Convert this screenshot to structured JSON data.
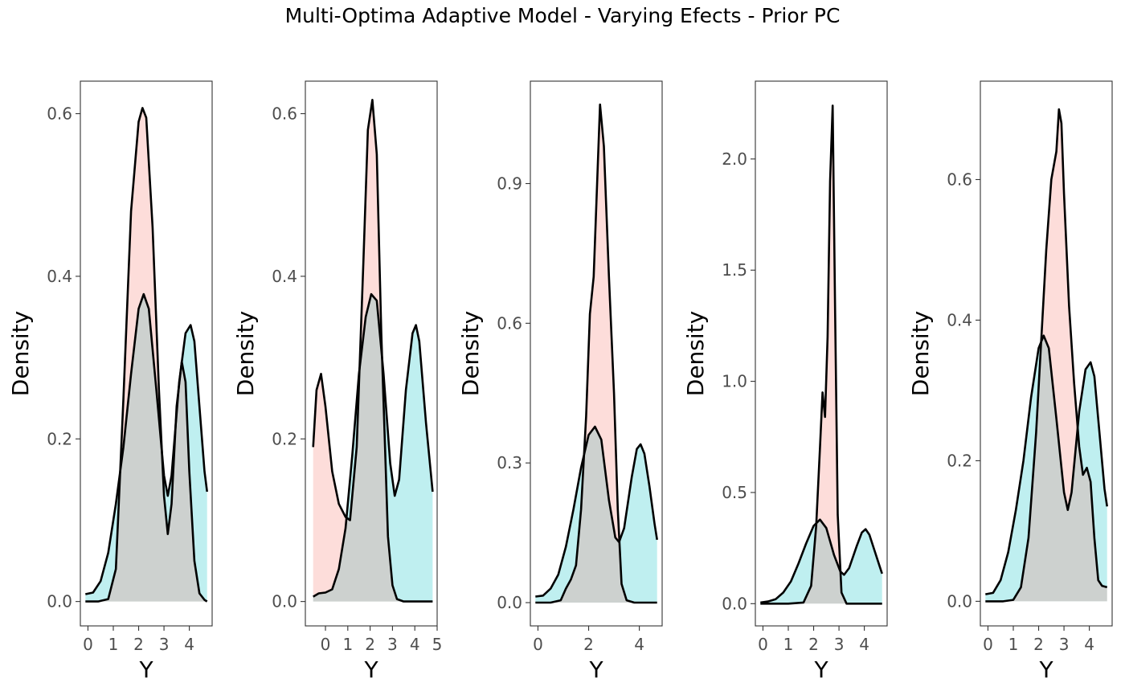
{
  "figure": {
    "title": "Multi-Optima Adaptive Model - Varying Efects - Prior PC"
  },
  "colors": {
    "prior_fill": "#F8766D",
    "observed_fill": "#00BFC4",
    "fill_opacity": 0.25,
    "line": "#000000"
  },
  "chart_data": [
    {
      "type": "area",
      "xlabel": "Y",
      "ylabel": "Density",
      "xlim": [
        -0.3,
        4.9
      ],
      "ylim": [
        -0.03,
        0.64
      ],
      "xticks": [
        "0",
        "1",
        "2",
        "3",
        "4"
      ],
      "xtick_values": [
        0,
        1,
        2,
        3,
        4
      ],
      "yticks": [
        "0.0",
        "0.2",
        "0.4",
        "0.6"
      ],
      "ytick_values": [
        0,
        0.2,
        0.4,
        0.6
      ],
      "series": [
        {
          "fill": "prior",
          "x": [
            -0.1,
            0.4,
            0.8,
            1.1,
            1.4,
            1.7,
            2.0,
            2.15,
            2.3,
            2.55,
            2.8,
            3.0,
            3.15,
            3.3,
            3.5,
            3.7,
            3.85,
            4.0,
            4.2,
            4.4,
            4.6,
            4.7
          ],
          "y": [
            0.0,
            0.0,
            0.003,
            0.04,
            0.25,
            0.48,
            0.59,
            0.607,
            0.595,
            0.46,
            0.26,
            0.13,
            0.083,
            0.12,
            0.24,
            0.295,
            0.27,
            0.16,
            0.05,
            0.01,
            0.002,
            0.0
          ]
        },
        {
          "fill": "observed",
          "x": [
            -0.1,
            0.2,
            0.5,
            0.8,
            1.1,
            1.4,
            1.7,
            2.0,
            2.2,
            2.4,
            2.7,
            3.0,
            3.15,
            3.3,
            3.6,
            3.85,
            4.05,
            4.2,
            4.4,
            4.6,
            4.7
          ],
          "y": [
            0.009,
            0.011,
            0.025,
            0.06,
            0.12,
            0.19,
            0.28,
            0.36,
            0.378,
            0.36,
            0.26,
            0.155,
            0.13,
            0.155,
            0.27,
            0.33,
            0.34,
            0.32,
            0.24,
            0.16,
            0.135
          ]
        }
      ]
    },
    {
      "type": "area",
      "xlabel": "Y",
      "ylabel": "Density",
      "xlim": [
        -0.9,
        5.0
      ],
      "ylim": [
        -0.03,
        0.64
      ],
      "xticks": [
        "0",
        "1",
        "2",
        "3",
        "4",
        "5"
      ],
      "xtick_values": [
        0,
        1,
        2,
        3,
        4,
        5
      ],
      "yticks": [
        "0.0",
        "0.2",
        "0.4",
        "0.6"
      ],
      "ytick_values": [
        0,
        0.2,
        0.4,
        0.6
      ],
      "series": [
        {
          "fill": "prior",
          "x": [
            -0.55,
            -0.4,
            -0.2,
            0.0,
            0.3,
            0.6,
            0.9,
            1.1,
            1.4,
            1.7,
            1.9,
            2.1,
            2.3,
            2.5,
            2.8,
            3.0,
            3.2,
            3.5,
            4.0,
            4.5,
            4.8
          ],
          "y": [
            0.19,
            0.26,
            0.28,
            0.24,
            0.16,
            0.12,
            0.104,
            0.1,
            0.19,
            0.42,
            0.58,
            0.617,
            0.55,
            0.33,
            0.08,
            0.02,
            0.003,
            0.0,
            0.0,
            0.0,
            0.0
          ]
        },
        {
          "fill": "observed",
          "x": [
            -0.55,
            -0.3,
            0.0,
            0.3,
            0.6,
            0.9,
            1.2,
            1.5,
            1.8,
            2.05,
            2.3,
            2.6,
            2.9,
            3.1,
            3.3,
            3.6,
            3.9,
            4.05,
            4.2,
            4.5,
            4.8
          ],
          "y": [
            0.006,
            0.01,
            0.011,
            0.015,
            0.04,
            0.09,
            0.18,
            0.28,
            0.35,
            0.378,
            0.37,
            0.28,
            0.17,
            0.13,
            0.15,
            0.26,
            0.33,
            0.34,
            0.32,
            0.22,
            0.135
          ]
        }
      ]
    },
    {
      "type": "area",
      "xlabel": "Y",
      "ylabel": "Density",
      "xlim": [
        -0.3,
        4.9
      ],
      "ylim": [
        -0.05,
        1.12
      ],
      "xticks": [
        "0",
        "2",
        "4"
      ],
      "xtick_values": [
        0,
        2,
        4
      ],
      "yticks": [
        "0.0",
        "0.3",
        "0.6",
        "0.9"
      ],
      "ytick_values": [
        0,
        0.3,
        0.6,
        0.9
      ],
      "series": [
        {
          "fill": "prior",
          "x": [
            -0.1,
            0.5,
            0.9,
            1.1,
            1.3,
            1.5,
            1.7,
            1.9,
            2.05,
            2.2,
            2.3,
            2.45,
            2.6,
            2.8,
            3.0,
            3.15,
            3.3,
            3.5,
            3.8,
            4.2,
            4.7
          ],
          "y": [
            0.0,
            0.0,
            0.005,
            0.03,
            0.05,
            0.08,
            0.2,
            0.4,
            0.62,
            0.7,
            0.85,
            1.07,
            0.98,
            0.7,
            0.45,
            0.2,
            0.04,
            0.005,
            0.0,
            0.0,
            0.0
          ]
        },
        {
          "fill": "observed",
          "x": [
            -0.1,
            0.2,
            0.5,
            0.8,
            1.1,
            1.4,
            1.7,
            2.0,
            2.25,
            2.5,
            2.8,
            3.05,
            3.2,
            3.4,
            3.7,
            3.9,
            4.05,
            4.2,
            4.4,
            4.6,
            4.7
          ],
          "y": [
            0.013,
            0.015,
            0.03,
            0.06,
            0.12,
            0.2,
            0.29,
            0.36,
            0.378,
            0.35,
            0.22,
            0.14,
            0.13,
            0.16,
            0.27,
            0.33,
            0.34,
            0.32,
            0.25,
            0.17,
            0.135
          ]
        }
      ]
    },
    {
      "type": "area",
      "xlabel": "Y",
      "ylabel": "Density",
      "xlim": [
        -0.3,
        4.9
      ],
      "ylim": [
        -0.1,
        2.35
      ],
      "xticks": [
        "0",
        "1",
        "2",
        "3",
        "4"
      ],
      "xtick_values": [
        0,
        1,
        2,
        3,
        4
      ],
      "yticks": [
        "0.0",
        "0.5",
        "1.0",
        "1.5",
        "2.0"
      ],
      "ytick_values": [
        0,
        0.5,
        1.0,
        1.5,
        2.0
      ],
      "series": [
        {
          "fill": "prior",
          "x": [
            -0.1,
            1.0,
            1.6,
            1.9,
            2.1,
            2.25,
            2.35,
            2.45,
            2.55,
            2.65,
            2.75,
            2.85,
            2.95,
            3.1,
            3.3,
            3.8,
            4.7
          ],
          "y": [
            0.0,
            0.0,
            0.005,
            0.08,
            0.35,
            0.7,
            0.95,
            0.84,
            1.2,
            1.9,
            2.24,
            1.3,
            0.4,
            0.05,
            0.0,
            0.0,
            0.0
          ]
        },
        {
          "fill": "observed",
          "x": [
            -0.1,
            0.2,
            0.5,
            0.8,
            1.1,
            1.4,
            1.7,
            2.0,
            2.25,
            2.5,
            2.8,
            3.05,
            3.2,
            3.4,
            3.7,
            3.9,
            4.05,
            4.2,
            4.4,
            4.6,
            4.7
          ],
          "y": [
            0.005,
            0.01,
            0.02,
            0.05,
            0.1,
            0.18,
            0.27,
            0.35,
            0.378,
            0.34,
            0.22,
            0.145,
            0.13,
            0.16,
            0.26,
            0.32,
            0.335,
            0.31,
            0.24,
            0.17,
            0.135
          ]
        }
      ]
    },
    {
      "type": "area",
      "xlabel": "Y",
      "ylabel": "Density",
      "xlim": [
        -0.3,
        4.9
      ],
      "ylim": [
        -0.035,
        0.74
      ],
      "xticks": [
        "0",
        "1",
        "2",
        "3",
        "4"
      ],
      "xtick_values": [
        0,
        1,
        2,
        3,
        4
      ],
      "yticks": [
        "0.0",
        "0.2",
        "0.4",
        "0.6"
      ],
      "ytick_values": [
        0,
        0.2,
        0.4,
        0.6
      ],
      "series": [
        {
          "fill": "prior",
          "x": [
            -0.1,
            0.6,
            1.0,
            1.3,
            1.6,
            1.9,
            2.1,
            2.3,
            2.5,
            2.7,
            2.8,
            2.9,
            3.0,
            3.2,
            3.4,
            3.6,
            3.75,
            3.9,
            4.05,
            4.2,
            4.35,
            4.5,
            4.7
          ],
          "y": [
            0.0,
            0.0,
            0.002,
            0.02,
            0.09,
            0.24,
            0.37,
            0.5,
            0.6,
            0.64,
            0.7,
            0.68,
            0.58,
            0.42,
            0.31,
            0.22,
            0.18,
            0.19,
            0.17,
            0.09,
            0.03,
            0.022,
            0.02
          ]
        },
        {
          "fill": "observed",
          "x": [
            -0.1,
            0.2,
            0.5,
            0.8,
            1.1,
            1.4,
            1.7,
            2.0,
            2.2,
            2.4,
            2.7,
            3.0,
            3.15,
            3.3,
            3.6,
            3.85,
            4.05,
            4.2,
            4.4,
            4.6,
            4.7
          ],
          "y": [
            0.01,
            0.012,
            0.03,
            0.07,
            0.13,
            0.2,
            0.29,
            0.36,
            0.378,
            0.36,
            0.26,
            0.155,
            0.13,
            0.155,
            0.27,
            0.33,
            0.34,
            0.32,
            0.24,
            0.16,
            0.135
          ]
        }
      ]
    }
  ]
}
